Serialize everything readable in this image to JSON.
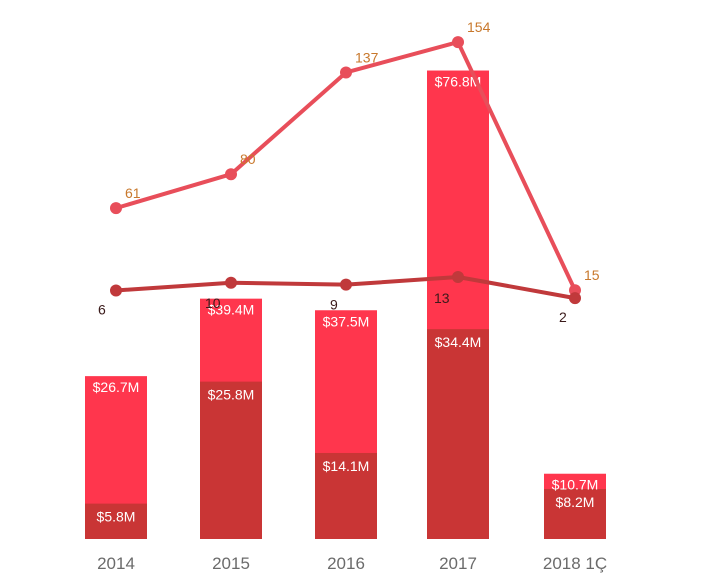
{
  "colors": {
    "bar_total": "#ff364d",
    "bar_bottom": "#c93535",
    "line_top": "#e84e5a",
    "line_top_label": "#c8782c",
    "line_bottom": "#c0393b",
    "line_bottom_label": "#3a1a1a",
    "axis_text": "#6b6b6b"
  },
  "chart_data": {
    "type": "bar",
    "categories": [
      "2014",
      "2015",
      "2016",
      "2017",
      "2018 1Ç"
    ],
    "bar_series": [
      {
        "values": [
          26.7,
          39.4,
          37.5,
          76.8,
          10.7
        ],
        "labels": [
          "$26.7M",
          "$39.4M",
          "$37.5M",
          "$76.8M",
          "$10.7M"
        ]
      },
      {
        "values": [
          5.8,
          25.8,
          14.1,
          34.4,
          8.2
        ],
        "labels": [
          "$5.8M",
          "$25.8M",
          "$14.1M",
          "$34.4M",
          "$8.2M"
        ]
      }
    ],
    "line_series": [
      {
        "type": "line",
        "values": [
          61,
          80,
          137,
          154,
          15
        ],
        "labels": [
          "61",
          "80",
          "137",
          "154",
          "15"
        ]
      },
      {
        "type": "line",
        "values": [
          6,
          10,
          9,
          13,
          2
        ],
        "labels": [
          "6",
          "10",
          "9",
          "13",
          "2"
        ]
      }
    ],
    "title": "",
    "xlabel": "",
    "ylabel": "",
    "grid": false,
    "legend": "none"
  }
}
